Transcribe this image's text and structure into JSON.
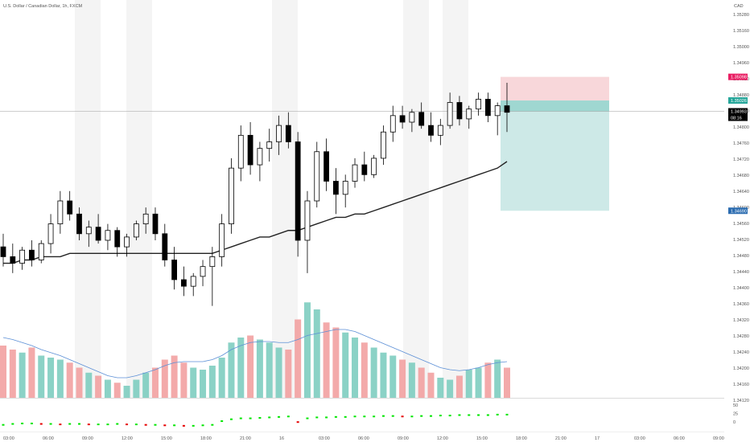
{
  "chart_data": {
    "type": "candlestick",
    "title": "U.S. Dollar / Canadian Dollar, 1h, FXCM",
    "currency": "CAD",
    "x_tick_labels": [
      "03:00",
      "06:00",
      "09:00",
      "12:00",
      "15:00",
      "18:00",
      "21:00",
      "16",
      "03:00",
      "06:00",
      "09:00",
      "12:00",
      "15:00",
      "18:00",
      "21:00",
      "17",
      "03:00",
      "06:00",
      "09:00"
    ],
    "price_ticks": [
      "1.35280",
      "1.35160",
      "1.35000",
      "1.34960",
      "1.34920",
      "1.34880",
      "1.34840",
      "1.34800",
      "1.34760",
      "1.34720",
      "1.34680",
      "1.34640",
      "1.34600",
      "1.34560",
      "1.34520",
      "1.34480",
      "1.34440",
      "1.34400",
      "1.34360",
      "1.34320",
      "1.34280",
      "1.34240",
      "1.34200",
      "1.34160",
      "1.34120"
    ],
    "indicator_ticks": [
      "50",
      "25",
      "0"
    ],
    "price_labels": {
      "stop": "1.35098",
      "entry": "1.35026",
      "current": "1.34993",
      "countdown": "08:16",
      "target": "1.34690"
    },
    "ylim": [
      1.3412,
      1.3532
    ],
    "candles": [
      [
        1.3458,
        1.3462,
        1.3452,
        1.3455
      ],
      [
        1.3455,
        1.3459,
        1.345,
        1.3453
      ],
      [
        1.3453,
        1.3458,
        1.3451,
        1.3457
      ],
      [
        1.3457,
        1.346,
        1.3452,
        1.3454
      ],
      [
        1.3454,
        1.346,
        1.3453,
        1.3459
      ],
      [
        1.3459,
        1.3468,
        1.3456,
        1.3465
      ],
      [
        1.3465,
        1.3475,
        1.3462,
        1.3472
      ],
      [
        1.3472,
        1.3475,
        1.3466,
        1.3468
      ],
      [
        1.3468,
        1.347,
        1.346,
        1.3462
      ],
      [
        1.3462,
        1.3466,
        1.3458,
        1.3464
      ],
      [
        1.3464,
        1.3468,
        1.3459,
        1.346
      ],
      [
        1.346,
        1.3465,
        1.3457,
        1.3463
      ],
      [
        1.3463,
        1.3464,
        1.3455,
        1.3458
      ],
      [
        1.3458,
        1.3462,
        1.3455,
        1.3461
      ],
      [
        1.3461,
        1.3466,
        1.346,
        1.3465
      ],
      [
        1.3465,
        1.347,
        1.3462,
        1.3468
      ],
      [
        1.3468,
        1.347,
        1.346,
        1.3462
      ],
      [
        1.3462,
        1.3465,
        1.3452,
        1.3454
      ],
      [
        1.3454,
        1.3458,
        1.3445,
        1.3448
      ],
      [
        1.3448,
        1.3452,
        1.3443,
        1.3446
      ],
      [
        1.3446,
        1.345,
        1.3443,
        1.3449
      ],
      [
        1.3449,
        1.3454,
        1.3446,
        1.3452
      ],
      [
        1.3452,
        1.3458,
        1.344,
        1.3455
      ],
      [
        1.3455,
        1.3468,
        1.3452,
        1.3465
      ],
      [
        1.3465,
        1.3485,
        1.3462,
        1.3482
      ],
      [
        1.3482,
        1.3495,
        1.3478,
        1.3492
      ],
      [
        1.3492,
        1.3496,
        1.348,
        1.3483
      ],
      [
        1.3483,
        1.349,
        1.3478,
        1.3488
      ],
      [
        1.3488,
        1.3494,
        1.3484,
        1.349
      ],
      [
        1.349,
        1.3498,
        1.3486,
        1.3495
      ],
      [
        1.3495,
        1.3499,
        1.3488,
        1.349
      ],
      [
        1.349,
        1.3493,
        1.3455,
        1.346
      ],
      [
        1.346,
        1.3475,
        1.345,
        1.3472
      ],
      [
        1.3472,
        1.349,
        1.347,
        1.3487
      ],
      [
        1.3487,
        1.3491,
        1.3475,
        1.3478
      ],
      [
        1.3478,
        1.3482,
        1.3468,
        1.3474
      ],
      [
        1.3474,
        1.348,
        1.347,
        1.3478
      ],
      [
        1.3478,
        1.3485,
        1.3476,
        1.3483
      ],
      [
        1.3483,
        1.3487,
        1.3478,
        1.348
      ],
      [
        1.348,
        1.3486,
        1.3479,
        1.3485
      ],
      [
        1.3485,
        1.3495,
        1.3483,
        1.3493
      ],
      [
        1.3493,
        1.3501,
        1.349,
        1.3498
      ],
      [
        1.3498,
        1.3501,
        1.3494,
        1.3496
      ],
      [
        1.3496,
        1.35,
        1.3493,
        1.3499
      ],
      [
        1.3499,
        1.3502,
        1.3494,
        1.3495
      ],
      [
        1.3495,
        1.3499,
        1.349,
        1.3492
      ],
      [
        1.3492,
        1.3497,
        1.3489,
        1.3495
      ],
      [
        1.3495,
        1.3505,
        1.3494,
        1.3502
      ],
      [
        1.3502,
        1.3504,
        1.3495,
        1.3497
      ],
      [
        1.3497,
        1.3501,
        1.3494,
        1.35
      ],
      [
        1.35,
        1.3505,
        1.3498,
        1.3503
      ],
      [
        1.3503,
        1.3505,
        1.3496,
        1.3498
      ],
      [
        1.3498,
        1.3502,
        1.3492,
        1.3501
      ],
      [
        1.3501,
        1.3508,
        1.3493,
        1.3499
      ]
    ],
    "volume": [
      52,
      48,
      45,
      50,
      42,
      40,
      38,
      35,
      30,
      25,
      22,
      18,
      15,
      12,
      18,
      25,
      30,
      38,
      42,
      35,
      30,
      28,
      32,
      40,
      55,
      60,
      62,
      58,
      55,
      50,
      48,
      78,
      95,
      88,
      75,
      70,
      65,
      60,
      55,
      50,
      45,
      42,
      38,
      35,
      30,
      25,
      20,
      18,
      22,
      28,
      30,
      35,
      38,
      30
    ],
    "volume_ma": [
      60,
      58,
      55,
      52,
      48,
      45,
      42,
      38,
      34,
      30,
      26,
      22,
      20,
      20,
      22,
      25,
      28,
      32,
      35,
      36,
      36,
      36,
      38,
      42,
      48,
      52,
      55,
      56,
      56,
      55,
      55,
      58,
      62,
      64,
      66,
      68,
      68,
      66,
      62,
      58,
      54,
      50,
      46,
      42,
      38,
      34,
      30,
      28,
      27,
      28,
      30,
      33,
      35,
      36
    ],
    "indicator": [
      4,
      6,
      7,
      7,
      6,
      6,
      5,
      6,
      6,
      5,
      5,
      5,
      6,
      5,
      5,
      4,
      4,
      3,
      3,
      2,
      2,
      3,
      4,
      12,
      16,
      18,
      18,
      19,
      20,
      21,
      22,
      10,
      18,
      20,
      20,
      21,
      21,
      22,
      22,
      22,
      23,
      23,
      22,
      22,
      23,
      23,
      24,
      24,
      25,
      25,
      25,
      25,
      26,
      26
    ],
    "ema": [
      1.3453,
      1.3453,
      1.3454,
      1.3454,
      1.3455,
      1.3455,
      1.3455,
      1.3456,
      1.3456,
      1.3456,
      1.3456,
      1.3456,
      1.3456,
      1.3456,
      1.3456,
      1.3456,
      1.3456,
      1.3456,
      1.3456,
      1.3456,
      1.3456,
      1.3456,
      1.3456,
      1.3457,
      1.3458,
      1.3459,
      1.346,
      1.3461,
      1.3461,
      1.3462,
      1.3463,
      1.3463,
      1.3464,
      1.3465,
      1.3466,
      1.3467,
      1.3467,
      1.3468,
      1.3468,
      1.3469,
      1.347,
      1.3471,
      1.3472,
      1.3473,
      1.3474,
      1.3475,
      1.3476,
      1.3477,
      1.3478,
      1.3479,
      1.348,
      1.3481,
      1.3482,
      1.3484
    ]
  },
  "colors": {
    "bull": "#ffffff",
    "bear": "#000000",
    "stop_zone": "#f8d7da",
    "target_zone": "#cde9e7",
    "ema": "#222222",
    "volume_up": "#7ecdc0",
    "volume_down": "#f2a1a1",
    "volume_ma": "#5b8fd6",
    "indicator_up": "#00e600",
    "indicator_down": "#e60000",
    "label_red": "#e91e63",
    "label_teal": "#26a69a",
    "label_black": "#000000",
    "label_blue": "#2b6cb0",
    "session_band": "#f4f4f4"
  }
}
